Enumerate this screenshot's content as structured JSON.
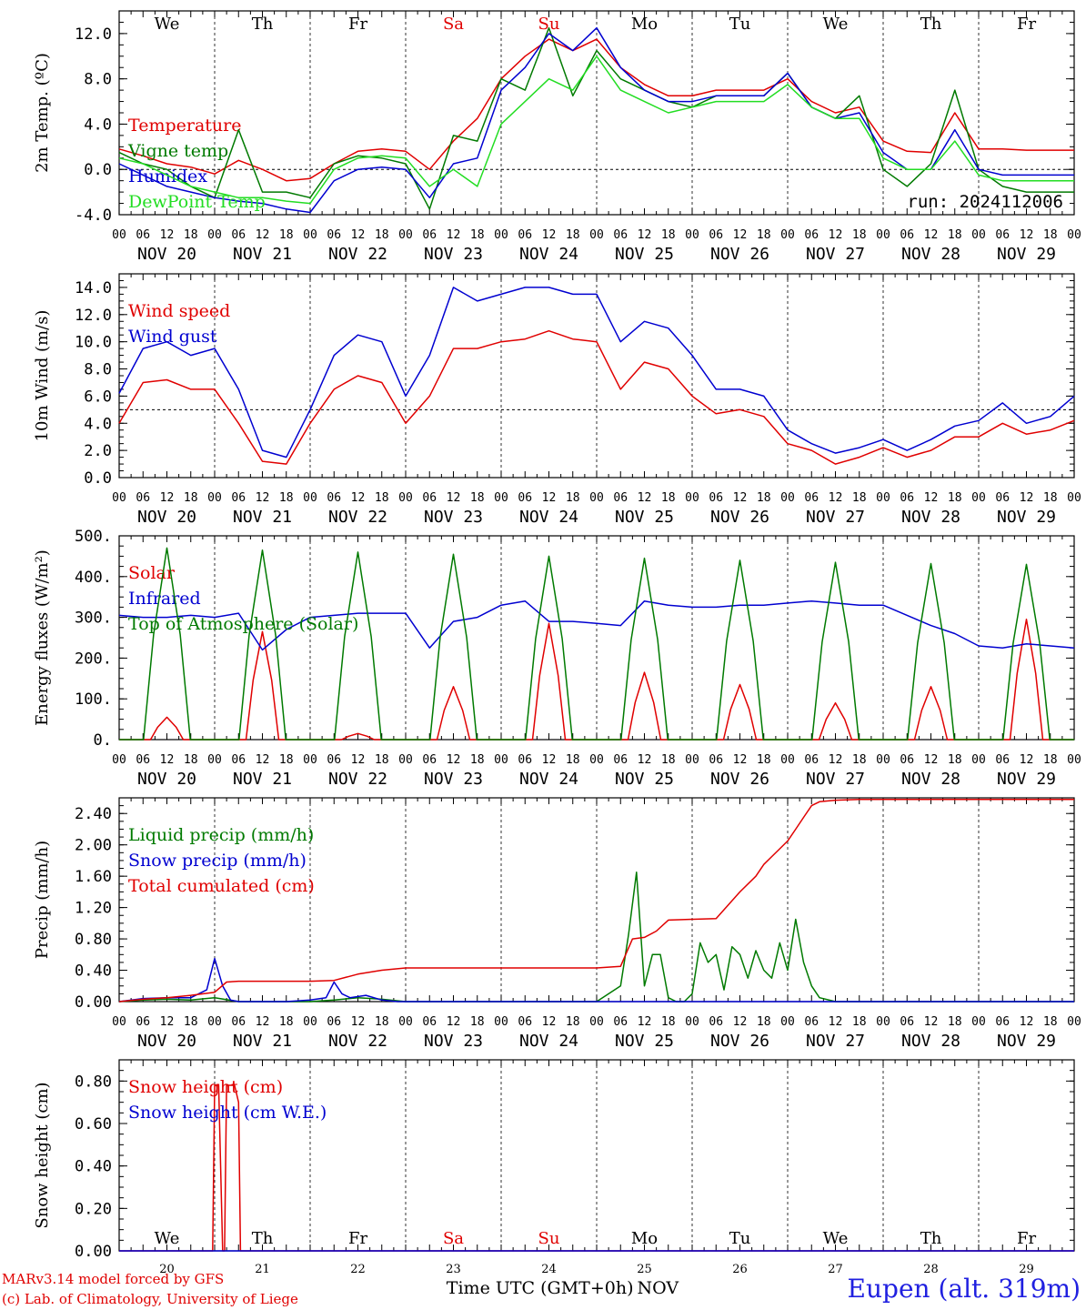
{
  "footer": {
    "model": "MARv3.14 model forced by GFS",
    "copyright": "(c) Lab. of Climatology, University of Liege",
    "xlabel": "Time UTC (GMT+0h)",
    "month": "NOV",
    "station": "Eupen (alt. 319m)"
  },
  "days": {
    "weekday": [
      "We",
      "Th",
      "Fr",
      "Sa",
      "Su",
      "Mo",
      "Tu",
      "We",
      "Th",
      "Fr"
    ],
    "weekend_flags": [
      false,
      false,
      false,
      true,
      true,
      false,
      false,
      false,
      false,
      false
    ],
    "date_labels": [
      "NOV 20",
      "NOV 21",
      "NOV 22",
      "NOV 23",
      "NOV 24",
      "NOV 25",
      "NOV 26",
      "NOV 27",
      "NOV 28",
      "NOV 29"
    ],
    "day_numbers": [
      "20",
      "21",
      "22",
      "23",
      "24",
      "25",
      "26",
      "27",
      "28",
      "29"
    ],
    "hour_ticks": [
      "00",
      "06",
      "12",
      "18"
    ],
    "final_tick": "00"
  },
  "colors": {
    "red": "#e00000",
    "green": "#007a00",
    "blue": "#0000d0",
    "light_green": "#22dd22",
    "purple": "#800080"
  },
  "chart_data": [
    {
      "type": "line",
      "ylabel": "2m Temp. (ºC)",
      "ylim": [
        -4,
        14
      ],
      "yticks": [
        "-4.0",
        "0.0",
        "4.0",
        "8.0",
        "12.0"
      ],
      "ytick_values": [
        -4,
        0,
        4,
        8,
        12
      ],
      "reference_line": 0,
      "annotation": "run: 2024112006",
      "x_hours_from_nov20_00": [
        0,
        6,
        12,
        18,
        24,
        30,
        36,
        42,
        48,
        54,
        60,
        66,
        72,
        78,
        84,
        90,
        96,
        102,
        108,
        114,
        120,
        126,
        132,
        138,
        144,
        150,
        156,
        162,
        168,
        174,
        180,
        186,
        192,
        198,
        204,
        210,
        216,
        222,
        228,
        234,
        240
      ],
      "series": [
        {
          "name": "Temperature",
          "color": "red",
          "values": [
            1.8,
            1.2,
            0.5,
            0.2,
            -0.4,
            0.8,
            0.0,
            -1.0,
            -0.8,
            0.5,
            1.6,
            1.8,
            1.6,
            0.0,
            2.5,
            4.5,
            8.0,
            10.0,
            11.5,
            10.5,
            11.5,
            9.0,
            7.5,
            6.5,
            6.5,
            7.0,
            7.0,
            7.0,
            8.0,
            6.0,
            5.0,
            5.5,
            2.5,
            1.6,
            1.5,
            5.0,
            1.8,
            1.8,
            1.7,
            1.7,
            1.7
          ]
        },
        {
          "name": "Vigne temp",
          "color": "green",
          "values": [
            1.5,
            0.5,
            0.0,
            -1.5,
            -2.5,
            3.5,
            -2.0,
            -2.0,
            -2.5,
            0.5,
            1.2,
            1.0,
            0.5,
            -3.5,
            3.0,
            2.5,
            8.0,
            7.0,
            12.5,
            6.5,
            10.5,
            8.0,
            7.0,
            6.0,
            5.5,
            6.5,
            6.5,
            6.5,
            8.5,
            5.5,
            4.5,
            6.5,
            0.0,
            -1.5,
            0.5,
            7.0,
            0.0,
            -1.5,
            -2.0,
            -2.0,
            -2.0
          ]
        },
        {
          "name": "Humidex",
          "color": "blue",
          "values": [
            0.5,
            -0.5,
            -1.5,
            -2.0,
            -2.5,
            -2.8,
            -3.0,
            -3.5,
            -3.8,
            -1.0,
            0.0,
            0.2,
            0.0,
            -2.5,
            0.5,
            1.0,
            7.0,
            9.0,
            12.0,
            10.5,
            12.5,
            9.0,
            7.0,
            6.0,
            6.0,
            6.5,
            6.5,
            6.5,
            8.5,
            5.5,
            4.5,
            5.0,
            1.5,
            0.0,
            0.0,
            3.5,
            0.0,
            -0.5,
            -0.5,
            -0.5,
            -0.5
          ]
        },
        {
          "name": "DewPoint Temp",
          "color": "light_green",
          "values": [
            1.0,
            0.5,
            -0.5,
            -1.5,
            -2.0,
            -2.5,
            -2.5,
            -2.8,
            -3.0,
            0.0,
            1.0,
            1.2,
            1.0,
            -1.5,
            0.0,
            -1.5,
            4.0,
            6.0,
            8.0,
            7.0,
            10.0,
            7.0,
            6.0,
            5.0,
            5.5,
            6.0,
            6.0,
            6.0,
            7.5,
            5.5,
            4.5,
            4.5,
            1.0,
            0.0,
            0.0,
            2.5,
            -0.5,
            -1.0,
            -1.0,
            -1.0,
            -1.0
          ]
        }
      ]
    },
    {
      "type": "line",
      "ylabel": "10m Wind (m/s)",
      "ylim": [
        0,
        15
      ],
      "yticks": [
        "0.0",
        "2.0",
        "4.0",
        "6.0",
        "8.0",
        "10.0",
        "12.0",
        "14.0"
      ],
      "ytick_values": [
        0,
        2,
        4,
        6,
        8,
        10,
        12,
        14
      ],
      "reference_line": 5,
      "x_hours_from_nov20_00": [
        0,
        6,
        12,
        18,
        24,
        30,
        36,
        42,
        48,
        54,
        60,
        66,
        72,
        78,
        84,
        90,
        96,
        102,
        108,
        114,
        120,
        126,
        132,
        138,
        144,
        150,
        156,
        162,
        168,
        174,
        180,
        186,
        192,
        198,
        204,
        210,
        216,
        222,
        228,
        234,
        240
      ],
      "series": [
        {
          "name": "Wind speed",
          "color": "red",
          "values": [
            4.0,
            7.0,
            7.2,
            6.5,
            6.5,
            4.0,
            1.2,
            1.0,
            4.0,
            6.5,
            7.5,
            7.0,
            4.0,
            6.0,
            9.5,
            9.5,
            10.0,
            10.2,
            10.8,
            10.2,
            10.0,
            6.5,
            8.5,
            8.0,
            6.0,
            4.7,
            5.0,
            4.5,
            2.5,
            2.0,
            1.0,
            1.5,
            2.2,
            1.5,
            2.0,
            3.0,
            3.0,
            4.0,
            3.2,
            3.5,
            4.2
          ]
        },
        {
          "name": "Wind gust",
          "color": "blue",
          "values": [
            6.2,
            9.5,
            10.0,
            9.0,
            9.5,
            6.5,
            2.0,
            1.5,
            5.0,
            9.0,
            10.5,
            10.0,
            6.0,
            9.0,
            14.0,
            13.0,
            13.5,
            14.0,
            14.0,
            13.5,
            13.5,
            10.0,
            11.5,
            11.0,
            9.0,
            6.5,
            6.5,
            6.0,
            3.5,
            2.5,
            1.8,
            2.2,
            2.8,
            2.0,
            2.8,
            3.8,
            4.2,
            5.5,
            4.0,
            4.5,
            6.0
          ]
        }
      ]
    },
    {
      "type": "line",
      "ylabel": "Energy fluxes (W/m²)",
      "ylim": [
        0,
        500
      ],
      "yticks": [
        "0.",
        "100.",
        "200.",
        "300.",
        "400.",
        "500."
      ],
      "ytick_values": [
        0,
        100,
        200,
        300,
        400,
        500
      ],
      "series": [
        {
          "name": "Solar",
          "color": "red",
          "day_peaks": [
            55,
            265,
            15,
            130,
            285,
            165,
            135,
            90,
            130,
            295
          ]
        },
        {
          "name": "Infrared",
          "color": "blue",
          "x_hours_from_nov20_00": [
            0,
            6,
            12,
            18,
            24,
            30,
            36,
            42,
            48,
            54,
            60,
            66,
            72,
            78,
            84,
            90,
            96,
            102,
            108,
            114,
            120,
            126,
            132,
            138,
            144,
            150,
            156,
            162,
            168,
            174,
            180,
            186,
            192,
            198,
            204,
            210,
            216,
            222,
            228,
            234,
            240
          ],
          "values": [
            305,
            300,
            300,
            305,
            300,
            310,
            220,
            270,
            300,
            305,
            310,
            310,
            310,
            225,
            290,
            300,
            330,
            340,
            290,
            290,
            285,
            280,
            340,
            330,
            325,
            325,
            330,
            330,
            335,
            340,
            335,
            330,
            330,
            305,
            280,
            260,
            230,
            225,
            235,
            230,
            225
          ]
        },
        {
          "name": "Top of Atmosphere (Solar)",
          "color": "green",
          "day_peaks": [
            470,
            465,
            460,
            455,
            450,
            445,
            440,
            435,
            432,
            430
          ]
        }
      ]
    },
    {
      "type": "line",
      "ylabel": "Precip (mm/h)",
      "ylim": [
        0,
        2.6
      ],
      "yticks": [
        "0.00",
        "0.40",
        "0.80",
        "1.20",
        "1.60",
        "2.00",
        "2.40"
      ],
      "ytick_values": [
        0,
        0.4,
        0.8,
        1.2,
        1.6,
        2.0,
        2.4
      ],
      "series": [
        {
          "name": "Liquid precip (mm/h)",
          "color": "green",
          "x_hours_from_nov20_00": [
            0,
            6,
            12,
            18,
            24,
            30,
            36,
            42,
            48,
            54,
            60,
            66,
            72,
            78,
            84,
            90,
            96,
            102,
            108,
            114,
            120,
            126,
            128,
            130,
            132,
            134,
            136,
            138,
            140,
            142,
            144,
            146,
            148,
            150,
            152,
            154,
            156,
            158,
            160,
            162,
            164,
            166,
            168,
            170,
            172,
            174,
            176,
            180,
            186,
            192,
            240
          ],
          "values": [
            0,
            0.02,
            0.03,
            0.02,
            0.05,
            0,
            0,
            0,
            0,
            0.02,
            0.05,
            0.03,
            0,
            0,
            0,
            0,
            0,
            0,
            0,
            0,
            0,
            0.2,
            0.85,
            1.65,
            0.2,
            0.6,
            0.6,
            0.05,
            0,
            0,
            0.1,
            0.75,
            0.5,
            0.6,
            0.15,
            0.7,
            0.6,
            0.3,
            0.65,
            0.4,
            0.3,
            0.75,
            0.4,
            1.05,
            0.5,
            0.2,
            0.05,
            0,
            0,
            0,
            0
          ]
        },
        {
          "name": "Snow precip (mm/h)",
          "color": "blue",
          "x_hours_from_nov20_00": [
            0,
            6,
            12,
            18,
            22,
            24,
            26,
            28,
            30,
            36,
            42,
            48,
            52,
            54,
            56,
            58,
            62,
            66,
            70,
            72,
            240
          ],
          "values": [
            0,
            0.04,
            0.05,
            0.05,
            0.15,
            0.55,
            0.2,
            0.02,
            0,
            0,
            0,
            0.02,
            0.05,
            0.25,
            0.1,
            0.05,
            0.08,
            0.02,
            0,
            0,
            0
          ]
        },
        {
          "name": "Total cumulated (cm)",
          "color": "red",
          "x_hours_from_nov20_00": [
            0,
            6,
            12,
            18,
            24,
            27,
            30,
            36,
            42,
            48,
            54,
            60,
            66,
            72,
            78,
            84,
            90,
            96,
            102,
            108,
            114,
            120,
            126,
            129,
            132,
            135,
            138,
            144,
            150,
            156,
            160,
            162,
            164,
            166,
            168,
            170,
            172,
            174,
            176,
            180,
            186,
            192,
            240
          ],
          "values": [
            0,
            0.03,
            0.05,
            0.08,
            0.12,
            0.25,
            0.26,
            0.26,
            0.26,
            0.26,
            0.27,
            0.35,
            0.4,
            0.43,
            0.43,
            0.43,
            0.43,
            0.43,
            0.43,
            0.43,
            0.43,
            0.43,
            0.45,
            0.8,
            0.82,
            0.9,
            1.04,
            1.05,
            1.06,
            1.4,
            1.6,
            1.75,
            1.85,
            1.95,
            2.05,
            2.2,
            2.35,
            2.5,
            2.55,
            2.57,
            2.58,
            2.58,
            2.58
          ]
        }
      ]
    },
    {
      "type": "line",
      "ylabel": "Snow height (cm)",
      "ylim": [
        0,
        0.9
      ],
      "yticks": [
        "0.00",
        "0.20",
        "0.40",
        "0.60",
        "0.80"
      ],
      "ytick_values": [
        0,
        0.2,
        0.4,
        0.6,
        0.8
      ],
      "series": [
        {
          "name": "Snow height (cm)",
          "color": "red",
          "x_hours_from_nov20_00": [
            0,
            23.5,
            24,
            25,
            26,
            26.5,
            27,
            28,
            29,
            30,
            30.5,
            240
          ],
          "values": [
            0,
            0,
            0.78,
            0.78,
            0,
            0,
            0.78,
            0.78,
            0.78,
            0.7,
            0,
            0
          ]
        },
        {
          "name": "Snow height (cm W.E.)",
          "color": "blue",
          "x_hours_from_nov20_00": [
            0,
            240
          ],
          "values": [
            0,
            0
          ]
        }
      ]
    }
  ]
}
